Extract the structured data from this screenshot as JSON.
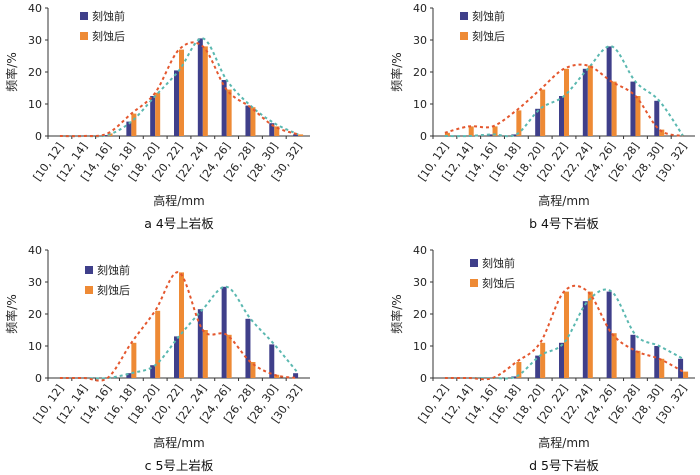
{
  "colors": {
    "before": "#3f3f8a",
    "after": "#ee8a35",
    "before_fit": "#5ab8b0",
    "after_fit": "#e4572e",
    "axis": "#333333"
  },
  "chart_data": [
    {
      "type": "bar",
      "caption": "a  4号上岩板",
      "categories": [
        "[10, 12]",
        "[12, 14]",
        "[14, 16]",
        "[16, 18]",
        "[18, 20]",
        "[20, 22]",
        "[22, 24]",
        "[24, 26]",
        "[26, 28]",
        "[28, 30]",
        "[30, 32]"
      ],
      "series": [
        {
          "name": "刻蚀前",
          "values": [
            0,
            0,
            0.3,
            4.5,
            12.5,
            20.5,
            30.5,
            17.5,
            9.5,
            4,
            0.5
          ]
        },
        {
          "name": "刻蚀后",
          "values": [
            0,
            0,
            0.8,
            7,
            13.5,
            27,
            28,
            14.5,
            9,
            3,
            0.5
          ]
        }
      ],
      "xlabel": "高程/mm",
      "ylabel": "频率/%",
      "ylim": [
        0,
        40
      ],
      "yticks": [
        "0",
        "10",
        "20",
        "30",
        "40"
      ],
      "legend": "top-left"
    },
    {
      "type": "bar",
      "caption": "b  4号下岩板",
      "categories": [
        "[10, 12]",
        "[12, 14]",
        "[14, 16]",
        "[16, 18]",
        "[18, 20]",
        "[20, 22]",
        "[22, 24]",
        "[24, 26]",
        "[26, 28]",
        "[28, 30]",
        "[30, 32]"
      ],
      "series": [
        {
          "name": "刻蚀前",
          "values": [
            0,
            0,
            0.5,
            0.5,
            8.5,
            12.5,
            21,
            28,
            17,
            11,
            0
          ]
        },
        {
          "name": "刻蚀后",
          "values": [
            1,
            3,
            3,
            8,
            14.5,
            21,
            22,
            17,
            12.5,
            2,
            0
          ]
        }
      ],
      "xlabel": "高程/mm",
      "ylabel": "频率/%",
      "ylim": [
        0,
        40
      ],
      "yticks": [
        "0",
        "10",
        "20",
        "30",
        "40"
      ],
      "legend": "top-left"
    },
    {
      "type": "bar",
      "caption": "c  5号上岩板",
      "categories": [
        "[10, 12]",
        "[12, 14]",
        "[14, 16]",
        "[16, 18]",
        "[18, 20]",
        "[20, 22]",
        "[22, 24]",
        "[24, 26]",
        "[26, 28]",
        "[28, 30]",
        "[30, 32]"
      ],
      "series": [
        {
          "name": "刻蚀前",
          "values": [
            0,
            0,
            0,
            1.5,
            4,
            13,
            21.5,
            28.5,
            18.5,
            10.5,
            1.5
          ]
        },
        {
          "name": "刻蚀后",
          "values": [
            0,
            0,
            0,
            11,
            21,
            33,
            15,
            13.5,
            5,
            1,
            0
          ]
        }
      ],
      "xlabel": "高程/mm",
      "ylabel": "频率/%",
      "ylim": [
        0,
        40
      ],
      "yticks": [
        "0",
        "10",
        "20",
        "30",
        "40"
      ],
      "legend": "top-right"
    },
    {
      "type": "bar",
      "caption": "d  5号下岩板",
      "categories": [
        "[10, 12]",
        "[12, 14]",
        "[14, 16]",
        "[16, 18]",
        "[18, 20]",
        "[20, 22]",
        "[22, 24]",
        "[24, 26]",
        "[26, 28]",
        "[28, 30]",
        "[30, 32]"
      ],
      "series": [
        {
          "name": "刻蚀前",
          "values": [
            0,
            0,
            0,
            0.5,
            7,
            11,
            24,
            27,
            13.5,
            10,
            6
          ]
        },
        {
          "name": "刻蚀后",
          "values": [
            0,
            0,
            0,
            5,
            11,
            27,
            27,
            14,
            8.5,
            6,
            2
          ]
        }
      ],
      "xlabel": "高程/mm",
      "ylabel": "频率/%",
      "ylim": [
        0,
        40
      ],
      "yticks": [
        "0",
        "10",
        "20",
        "30",
        "40"
      ],
      "legend": "top-right"
    }
  ]
}
